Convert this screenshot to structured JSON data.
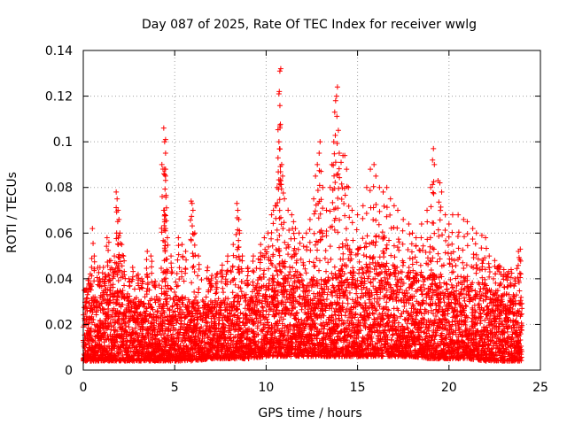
{
  "chart_data": {
    "type": "scatter",
    "title": "Day 087 of 2025, Rate Of TEC Index for receiver wwlg",
    "xlabel": "GPS time / hours",
    "ylabel": "ROTI / TECUs",
    "xlim": [
      0,
      25
    ],
    "ylim": [
      0,
      0.14
    ],
    "xticks": [
      "0",
      "5",
      "10",
      "15",
      "20",
      "25"
    ],
    "yticks": [
      "0",
      "0.02",
      "0.04",
      "0.06",
      "0.08",
      "0.1",
      "0.12",
      "0.14"
    ],
    "grid": true,
    "marker": "plus",
    "series": [
      {
        "name": "ROTI",
        "color": "#ff0000",
        "points": [
          [
            0.1,
            0.035
          ],
          [
            0.2,
            0.03
          ],
          [
            0.3,
            0.04
          ],
          [
            0.4,
            0.038
          ],
          [
            0.5,
            0.062
          ],
          [
            0.6,
            0.05
          ],
          [
            0.8,
            0.045
          ],
          [
            0.9,
            0.04
          ],
          [
            1.1,
            0.045
          ],
          [
            1.2,
            0.042
          ],
          [
            1.3,
            0.058
          ],
          [
            1.4,
            0.056
          ],
          [
            1.5,
            0.048
          ],
          [
            1.6,
            0.044
          ],
          [
            1.7,
            0.05
          ],
          [
            1.8,
            0.078
          ],
          [
            1.85,
            0.075
          ],
          [
            1.9,
            0.07
          ],
          [
            1.95,
            0.066
          ],
          [
            2.0,
            0.06
          ],
          [
            2.1,
            0.055
          ],
          [
            2.2,
            0.05
          ],
          [
            2.5,
            0.04
          ],
          [
            2.7,
            0.045
          ],
          [
            3.0,
            0.042
          ],
          [
            3.2,
            0.04
          ],
          [
            3.5,
            0.052
          ],
          [
            3.7,
            0.05
          ],
          [
            3.9,
            0.038
          ],
          [
            4.3,
            0.09
          ],
          [
            4.4,
            0.106
          ],
          [
            4.45,
            0.1
          ],
          [
            4.5,
            0.101
          ],
          [
            4.5,
            0.095
          ],
          [
            4.5,
            0.088
          ],
          [
            4.5,
            0.085
          ],
          [
            4.4,
            0.07
          ],
          [
            4.45,
            0.066
          ],
          [
            4.5,
            0.062
          ],
          [
            4.6,
            0.058
          ],
          [
            4.8,
            0.05
          ],
          [
            5.2,
            0.058
          ],
          [
            5.4,
            0.055
          ],
          [
            5.6,
            0.052
          ],
          [
            5.9,
            0.074
          ],
          [
            5.95,
            0.073
          ],
          [
            6.0,
            0.07
          ],
          [
            6.1,
            0.06
          ],
          [
            6.3,
            0.05
          ],
          [
            6.8,
            0.045
          ],
          [
            7.0,
            0.04
          ],
          [
            7.3,
            0.042
          ],
          [
            7.6,
            0.046
          ],
          [
            7.9,
            0.05
          ],
          [
            8.2,
            0.055
          ],
          [
            8.4,
            0.073
          ],
          [
            8.45,
            0.07
          ],
          [
            8.5,
            0.066
          ],
          [
            8.55,
            0.06
          ],
          [
            8.7,
            0.05
          ],
          [
            9.0,
            0.045
          ],
          [
            9.3,
            0.05
          ],
          [
            9.7,
            0.055
          ],
          [
            9.9,
            0.058
          ],
          [
            10.1,
            0.06
          ],
          [
            10.3,
            0.068
          ],
          [
            10.4,
            0.07
          ],
          [
            10.5,
            0.072
          ],
          [
            10.6,
            0.08
          ],
          [
            10.65,
            0.093
          ],
          [
            10.7,
            0.1
          ],
          [
            10.75,
            0.107
          ],
          [
            10.7,
            0.121
          ],
          [
            10.72,
            0.122
          ],
          [
            10.75,
            0.131
          ],
          [
            10.8,
            0.132
          ],
          [
            10.85,
            0.09
          ],
          [
            10.9,
            0.085
          ],
          [
            11.0,
            0.075
          ],
          [
            11.2,
            0.07
          ],
          [
            11.4,
            0.068
          ],
          [
            11.5,
            0.065
          ],
          [
            11.6,
            0.062
          ],
          [
            11.8,
            0.06
          ],
          [
            12.0,
            0.058
          ],
          [
            12.2,
            0.06
          ],
          [
            12.4,
            0.066
          ],
          [
            12.6,
            0.075
          ],
          [
            12.7,
            0.085
          ],
          [
            12.8,
            0.09
          ],
          [
            12.9,
            0.095
          ],
          [
            12.95,
            0.1
          ],
          [
            13.0,
            0.087
          ],
          [
            13.1,
            0.08
          ],
          [
            13.3,
            0.07
          ],
          [
            13.5,
            0.08
          ],
          [
            13.6,
            0.09
          ],
          [
            13.7,
            0.1
          ],
          [
            13.75,
            0.113
          ],
          [
            13.8,
            0.118
          ],
          [
            13.85,
            0.12
          ],
          [
            13.9,
            0.124
          ],
          [
            13.95,
            0.105
          ],
          [
            14.0,
            0.095
          ],
          [
            14.1,
            0.091
          ],
          [
            14.2,
            0.094
          ],
          [
            14.3,
            0.094
          ],
          [
            14.4,
            0.088
          ],
          [
            14.5,
            0.08
          ],
          [
            14.7,
            0.07
          ],
          [
            15.0,
            0.068
          ],
          [
            15.3,
            0.072
          ],
          [
            15.5,
            0.08
          ],
          [
            15.7,
            0.088
          ],
          [
            15.9,
            0.09
          ],
          [
            16.0,
            0.085
          ],
          [
            16.2,
            0.08
          ],
          [
            16.4,
            0.078
          ],
          [
            16.6,
            0.08
          ],
          [
            16.8,
            0.075
          ],
          [
            17.0,
            0.072
          ],
          [
            17.2,
            0.07
          ],
          [
            17.5,
            0.066
          ],
          [
            17.8,
            0.064
          ],
          [
            18.0,
            0.06
          ],
          [
            18.2,
            0.058
          ],
          [
            18.5,
            0.064
          ],
          [
            18.8,
            0.07
          ],
          [
            19.0,
            0.08
          ],
          [
            19.1,
            0.092
          ],
          [
            19.15,
            0.097
          ],
          [
            19.2,
            0.09
          ],
          [
            19.4,
            0.083
          ],
          [
            19.5,
            0.082
          ],
          [
            19.6,
            0.078
          ],
          [
            19.8,
            0.068
          ],
          [
            20.0,
            0.064
          ],
          [
            20.2,
            0.068
          ],
          [
            20.5,
            0.068
          ],
          [
            20.8,
            0.066
          ],
          [
            21.0,
            0.065
          ],
          [
            21.3,
            0.062
          ],
          [
            21.5,
            0.06
          ],
          [
            21.8,
            0.059
          ],
          [
            22.0,
            0.058
          ],
          [
            22.2,
            0.05
          ],
          [
            22.5,
            0.048
          ],
          [
            22.8,
            0.045
          ],
          [
            23.0,
            0.044
          ],
          [
            23.2,
            0.042
          ],
          [
            23.4,
            0.044
          ],
          [
            23.6,
            0.04
          ],
          [
            23.8,
            0.052
          ],
          [
            23.9,
            0.053
          ]
        ]
      }
    ],
    "density_envelope": {
      "hours": [
        0,
        1,
        2,
        3,
        4,
        5,
        6,
        7,
        8,
        9,
        10,
        11,
        12,
        13,
        14,
        15,
        16,
        17,
        18,
        19,
        20,
        21,
        22,
        23,
        24
      ],
      "typical_max": [
        0.03,
        0.034,
        0.036,
        0.03,
        0.032,
        0.034,
        0.03,
        0.03,
        0.032,
        0.034,
        0.04,
        0.044,
        0.04,
        0.04,
        0.042,
        0.044,
        0.048,
        0.046,
        0.042,
        0.044,
        0.04,
        0.038,
        0.036,
        0.034,
        0.032
      ],
      "typical_min": [
        0.004,
        0.004,
        0.004,
        0.004,
        0.004,
        0.004,
        0.004,
        0.005,
        0.005,
        0.005,
        0.006,
        0.006,
        0.006,
        0.006,
        0.006,
        0.006,
        0.006,
        0.006,
        0.006,
        0.005,
        0.005,
        0.005,
        0.004,
        0.004,
        0.004
      ]
    }
  }
}
